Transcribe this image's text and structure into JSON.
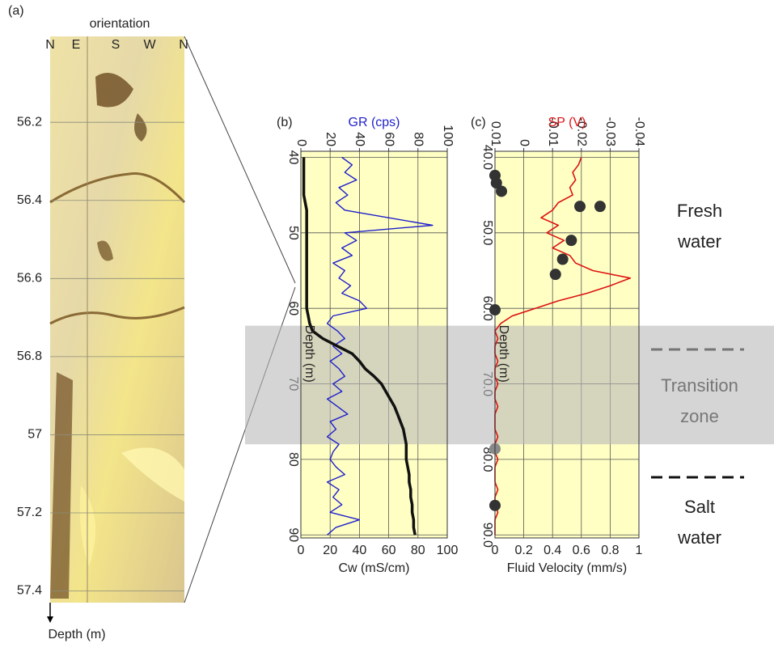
{
  "panel_a": {
    "label": "(a)",
    "orientation_label": "orientation",
    "orientations": [
      "N",
      "E",
      "S",
      "W",
      "N"
    ],
    "ylim": [
      55.98,
      57.43
    ],
    "yticks": [
      56.2,
      56.4,
      56.6,
      56.8,
      57.0,
      57.2,
      57.4
    ],
    "ylabel": "Depth (m)"
  },
  "zones": {
    "fresh": [
      "Fresh",
      "water"
    ],
    "transition": [
      "Transition",
      "zone"
    ],
    "salt": [
      "Salt",
      "water"
    ],
    "transition_depth": [
      62.3,
      78.0
    ]
  },
  "chart_data": [
    {
      "type": "line",
      "label": "(b)",
      "x2label": "GR (cps)",
      "xlabel": "Cw (mS/cm)",
      "ylabel": "Depth (m)",
      "ylim": [
        39.2,
        90.4
      ],
      "yticks": [
        40,
        50,
        60,
        70,
        80,
        90
      ],
      "xlim": [
        0,
        100
      ],
      "xticks": [
        0,
        20,
        40,
        60,
        80,
        100
      ],
      "x2lim": [
        0,
        100
      ],
      "x2ticks": [
        0,
        20,
        40,
        60,
        80,
        100
      ],
      "grid": true,
      "background": "#ffffc4",
      "series": [
        {
          "type": "line",
          "axis": "x2",
          "color": "#1f1fcc",
          "width": 1.4,
          "y": [
            40,
            41,
            42,
            43,
            44,
            45,
            46,
            47,
            48,
            49,
            50,
            51,
            52,
            53,
            54,
            55,
            56,
            57,
            58,
            59,
            60,
            61,
            62,
            63,
            64,
            65,
            66,
            67,
            68,
            69,
            70,
            71,
            72,
            73,
            74,
            75,
            76,
            77,
            78,
            79,
            80,
            81,
            82,
            83,
            84,
            85,
            86,
            87,
            88,
            89,
            90
          ],
          "values": [
            28,
            35,
            30,
            38,
            26,
            32,
            24,
            30,
            60,
            90,
            30,
            38,
            28,
            35,
            22,
            30,
            26,
            34,
            28,
            40,
            45,
            22,
            18,
            25,
            30,
            22,
            28,
            20,
            26,
            30,
            22,
            28,
            18,
            25,
            32,
            20,
            24,
            18,
            26,
            22,
            20,
            24,
            30,
            18,
            26,
            22,
            28,
            20,
            40,
            24,
            18
          ]
        },
        {
          "type": "line",
          "axis": "x",
          "color": "#111111",
          "width": 3.5,
          "y": [
            40,
            41,
            42,
            43,
            44,
            45,
            46,
            47,
            48,
            49,
            50,
            51,
            52,
            53,
            54,
            55,
            56,
            57,
            58,
            59,
            60,
            61,
            62,
            63,
            64,
            65,
            66,
            67,
            68,
            69,
            70,
            71,
            72,
            73,
            74,
            75,
            76,
            77,
            78,
            79,
            80,
            81,
            82,
            83,
            84,
            85,
            86,
            87,
            88,
            89,
            90
          ],
          "values": [
            2,
            2,
            2,
            2,
            2,
            2,
            3,
            4,
            4,
            4,
            4,
            4,
            4,
            4,
            4,
            4,
            4,
            4,
            4,
            4,
            4,
            5,
            6,
            8,
            15,
            25,
            35,
            40,
            44,
            50,
            55,
            58,
            61,
            64,
            66,
            68,
            70,
            71,
            72,
            72,
            72,
            73,
            74,
            74,
            75,
            75,
            76,
            76,
            77,
            77,
            78
          ]
        }
      ]
    },
    {
      "type": "line",
      "label": "(c)",
      "x2label": "SP (V)",
      "xlabel": "Fluid Velocity (mm/s)",
      "ylabel": "Depth (m)",
      "ylim": [
        39.2,
        90.4
      ],
      "yticks": [
        {
          "value": 40,
          "label": "40.0"
        },
        {
          "value": 50,
          "label": "50.0"
        },
        {
          "value": 60,
          "label": "60.0"
        },
        {
          "value": 70,
          "label": "70.0"
        },
        {
          "value": 80,
          "label": "80.0"
        },
        {
          "value": 90,
          "label": "90.0"
        }
      ],
      "xlim": [
        0,
        1
      ],
      "xticks": [
        0,
        0.2,
        0.4,
        0.6,
        0.8,
        1
      ],
      "x2lim": [
        0.01,
        -0.04
      ],
      "x2ticks": [
        0.01,
        0,
        -0.01,
        -0.02,
        -0.03,
        -0.04
      ],
      "grid": true,
      "background": "#ffffc4",
      "series": [
        {
          "type": "line",
          "axis": "x2",
          "color": "#dd1111",
          "width": 1.6,
          "y": [
            40,
            41,
            42,
            43,
            44,
            45,
            46,
            47,
            48,
            49,
            50,
            51,
            52,
            53,
            54,
            55,
            56,
            57,
            58,
            59,
            60,
            61,
            62,
            63,
            64,
            65,
            66,
            67,
            68,
            69,
            70,
            71,
            72,
            73,
            74,
            75,
            76,
            77,
            78,
            79,
            80,
            81,
            82,
            83,
            84,
            85,
            86,
            87,
            88,
            89,
            90
          ],
          "values": [
            -0.02,
            -0.019,
            -0.017,
            -0.018,
            -0.016,
            -0.017,
            -0.012,
            -0.01,
            -0.006,
            -0.012,
            -0.008,
            -0.014,
            -0.01,
            -0.016,
            -0.018,
            -0.024,
            -0.037,
            -0.03,
            -0.022,
            -0.012,
            -0.004,
            0.004,
            0.008,
            0.01,
            0.009,
            0.01,
            0.01,
            0.009,
            0.01,
            0.01,
            0.009,
            0.01,
            0.01,
            0.009,
            0.01,
            0.01,
            0.01,
            0.009,
            0.01,
            0.01,
            0.009,
            0.01,
            0.01,
            0.01,
            0.009,
            0.01,
            0.01,
            0.009,
            0.01,
            0.01,
            0.01
          ]
        },
        {
          "type": "scatter",
          "axis": "x",
          "y": [
            42.4,
            43.4,
            44.5,
            46.5,
            46.5,
            51.0,
            53.5,
            55.5,
            60.2,
            78.6,
            86.1
          ],
          "values": [
            0,
            0.01,
            0.045,
            0.59,
            0.73,
            0.53,
            0.47,
            0.42,
            0,
            0,
            0
          ],
          "colors": [
            "#333333",
            "#333333",
            "#333333",
            "#333333",
            "#333333",
            "#333333",
            "#333333",
            "#333333",
            "#333333",
            "#888888",
            "#333333"
          ]
        }
      ]
    }
  ]
}
